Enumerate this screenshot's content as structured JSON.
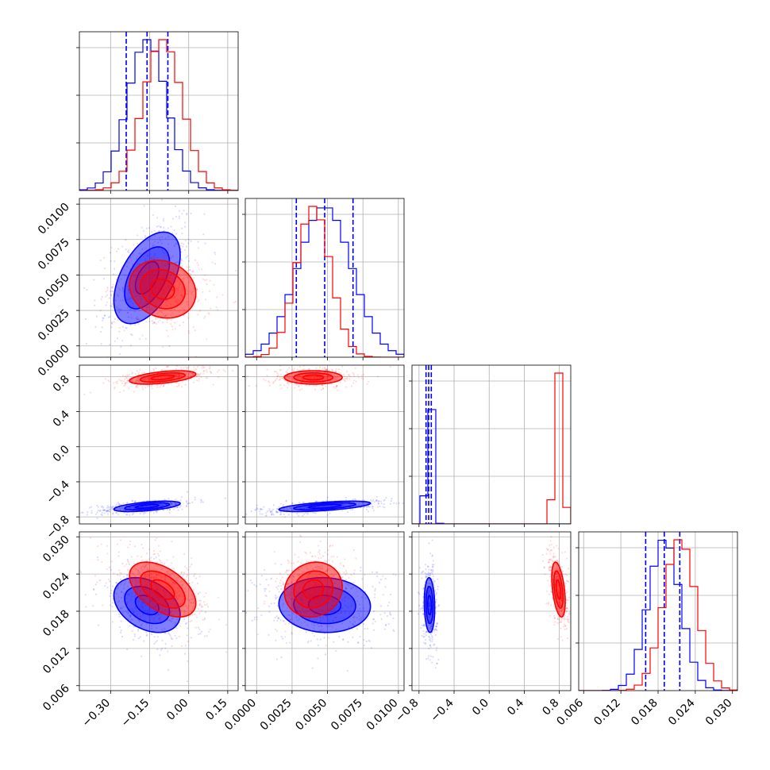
{
  "colors": {
    "series_a": "#0000ff",
    "series_b": "#ff0000",
    "grid": "#b0b0b0",
    "quantile": "#0000ff"
  },
  "chart_data": {
    "type": "corner",
    "grid": true,
    "parameters": [
      {
        "range": [
          -0.42,
          0.19
        ],
        "ticks": [
          -0.3,
          -0.15,
          0.0,
          0.15
        ],
        "tick_labels": [
          "−0.30",
          "−0.15",
          "0.00",
          "0.15"
        ]
      },
      {
        "range": [
          -0.0008,
          0.0104
        ],
        "ticks": [
          0.0,
          0.0025,
          0.005,
          0.0075,
          0.01
        ],
        "tick_labels": [
          "0.0000",
          "0.0025",
          "0.0050",
          "0.0075",
          "0.0100"
        ]
      },
      {
        "range": [
          -0.88,
          0.93
        ],
        "ticks": [
          -0.8,
          -0.4,
          0.0,
          0.4,
          0.8
        ],
        "tick_labels": [
          "−0.8",
          "−0.4",
          "0.0",
          "0.4",
          "0.8"
        ]
      },
      {
        "range": [
          0.0052,
          0.0308
        ],
        "ticks": [
          0.006,
          0.012,
          0.018,
          0.024,
          0.03
        ],
        "tick_labels": [
          "0.006",
          "0.012",
          "0.018",
          "0.024",
          "0.030"
        ]
      }
    ],
    "series": [
      {
        "color": "#0000ff",
        "mean": [
          -0.16,
          0.0048,
          -0.68,
          0.019
        ],
        "sd": [
          0.075,
          0.0019,
          0.035,
          0.0026
        ],
        "corr": [
          [
            0,
            1,
            0.5
          ],
          [
            0,
            2,
            0.55
          ],
          [
            1,
            2,
            0.6
          ],
          [
            0,
            3,
            -0.35
          ],
          [
            1,
            3,
            -0.05
          ],
          [
            2,
            3,
            -0.1
          ]
        ],
        "quantiles": [
          [
            -0.24,
            -0.16,
            -0.08
          ],
          [
            0.0028,
            0.0048,
            0.0068
          ],
          [
            -0.72,
            -0.69,
            -0.66
          ],
          [
            0.016,
            0.019,
            0.0215
          ]
        ]
      },
      {
        "color": "#ff0000",
        "mean": [
          -0.1,
          0.004,
          0.79,
          0.0215
        ],
        "sd": [
          0.075,
          0.0012,
          0.045,
          0.0026
        ],
        "corr": [
          [
            0,
            1,
            -0.15
          ],
          [
            0,
            2,
            0.5
          ],
          [
            1,
            2,
            0.0
          ],
          [
            0,
            3,
            -0.5
          ],
          [
            1,
            3,
            0.1
          ],
          [
            2,
            3,
            -0.45
          ]
        ]
      }
    ]
  }
}
